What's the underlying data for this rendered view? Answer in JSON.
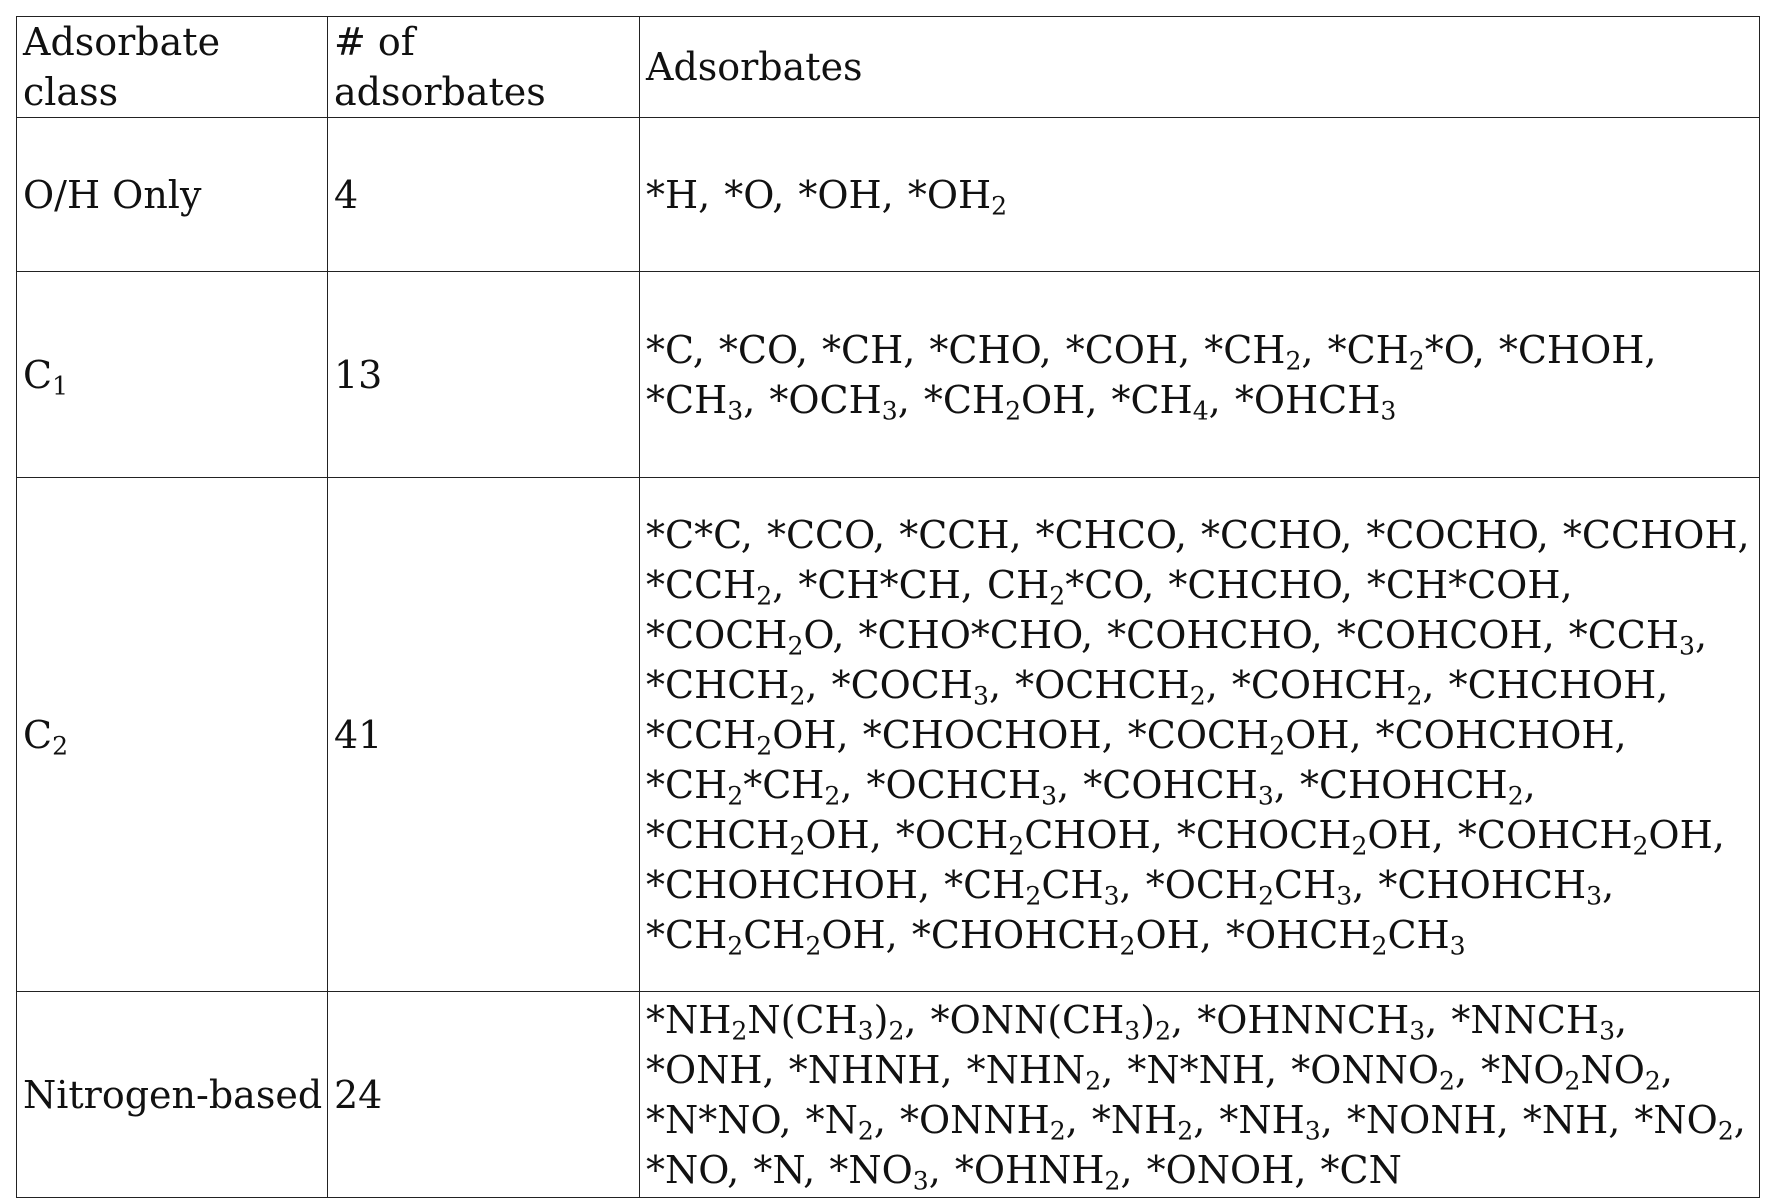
{
  "table": {
    "headers": [
      "Adsorbate class",
      "# of adsorbates",
      "Adsorbates"
    ],
    "rows": [
      {
        "class": "O/H Only",
        "class_sub": "",
        "count": "4",
        "adsorbates": "*H, *O, *OH, *OH_2"
      },
      {
        "class": "C",
        "class_sub": "1",
        "count": "13",
        "adsorbates": "*C, *CO, *CH, *CHO, *COH, *CH_2, *CH_2*O, *CHOH, *CH_3, *OCH_3, *CH_2OH, *CH_4, *OHCH_3"
      },
      {
        "class": "C",
        "class_sub": "2",
        "count": "41",
        "adsorbates": "*C*C, *CCO, *CCH, *CHCO, *CCHO, *COCHO, *CCHOH, *CCH_2, *CH*CH, CH_2*CO, *CHCHO, *CH*COH, *COCH_2O, *CHO*CHO, *COHCHO, *COHCOH, *CCH_3, *CHCH_2, *COCH_3, *OCHCH_2, *COHCH_2, *CHCHOH, *CCH_2OH, *CHOCHOH, *COCH_2OH, *COHCHOH, *CH_2*CH_2, *OCHCH_3, *COHCH_3, *CHOHCH_2, *CHCH_2OH, *OCH_2CHOH, *CHOCH_2OH, *COHCH_2OH, *CHOHCHOH, *CH_2CH_3, *OCH_2CH_3, *CHOHCH_3, *CH_2CH_2OH, *CHOHCH_2OH, *OHCH_2CH_3"
      },
      {
        "class": "Nitrogen-based",
        "class_sub": "",
        "count": "24",
        "adsorbates": "*NH_2N(CH_3)_2, *ONN(CH_3)_2, *OHNNCH_3, *NNCH_3, *ONH, *NHNH, *NHN_2, *N*NH, *ONNO_2, *NO_2NO_2, *N*NO, *N_2, *ONNH_2, *NH_2, *NH_3, *NONH, *NH, *NO_2, *NO, *N, *NO_3, *OHNH_2, *ONOH, *CN"
      }
    ]
  }
}
